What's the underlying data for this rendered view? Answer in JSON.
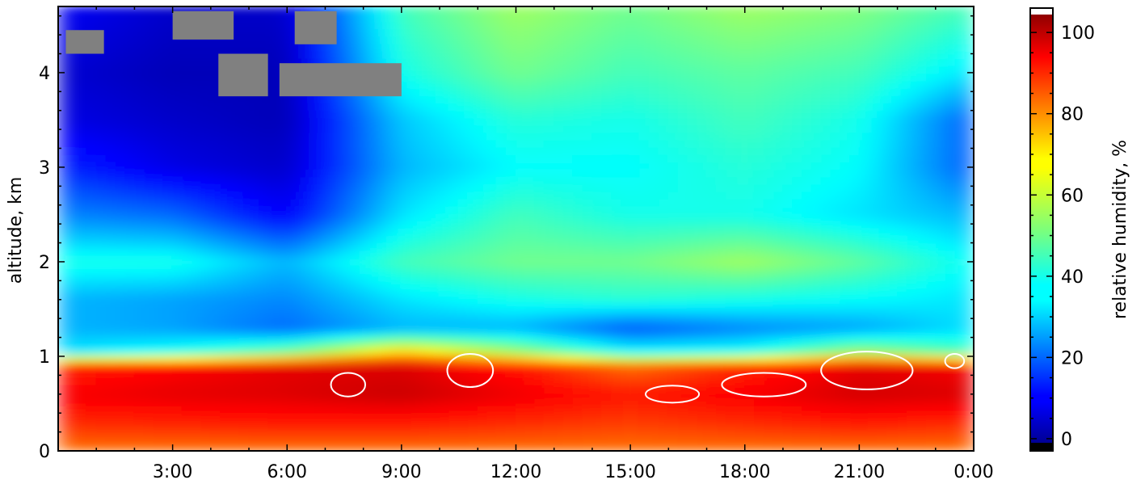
{
  "chart_data": {
    "type": "heatmap",
    "title": "",
    "xlabel": "",
    "ylabel": "altitude, km",
    "x_tick_labels": [
      "3:00",
      "6:00",
      "9:00",
      "12:00",
      "15:00",
      "18:00",
      "21:00",
      "0:00"
    ],
    "x_ticks_hours": [
      3,
      6,
      9,
      12,
      15,
      18,
      21,
      24
    ],
    "xlim_hours": [
      0,
      24
    ],
    "y_tick_labels": [
      "0",
      "1",
      "2",
      "3",
      "4"
    ],
    "y_ticks": [
      0,
      1,
      2,
      3,
      4
    ],
    "ylim": [
      0,
      4.7
    ],
    "colorbar": {
      "label": "relative humidity, %",
      "tick_labels": [
        "0",
        "20",
        "40",
        "60",
        "80",
        "100"
      ],
      "ticks": [
        0,
        20,
        40,
        60,
        80,
        100
      ],
      "range": [
        -3,
        106
      ],
      "colormap": "jet",
      "over_color": "#ffffff",
      "under_color": "#000000"
    },
    "no_data_color": "#808080",
    "contour_color": "#ffffff",
    "humidity_profile": {
      "altitude_km": [
        0.0,
        0.3,
        0.6,
        0.9,
        1.05,
        1.3,
        1.6,
        2.0,
        2.5,
        3.0,
        3.5,
        4.0,
        4.7
      ],
      "time_hours": [
        0,
        3,
        6,
        9,
        12,
        15,
        18,
        21,
        24
      ],
      "rh_percent": [
        [
          80,
          80,
          80,
          80,
          80,
          80,
          80,
          80,
          80
        ],
        [
          88,
          89,
          90,
          90,
          88,
          86,
          88,
          90,
          88
        ],
        [
          93,
          95,
          96,
          98,
          94,
          90,
          93,
          97,
          96
        ],
        [
          88,
          92,
          95,
          96,
          90,
          80,
          88,
          95,
          93
        ],
        [
          35,
          40,
          50,
          70,
          55,
          38,
          40,
          55,
          45
        ],
        [
          30,
          28,
          22,
          30,
          30,
          20,
          25,
          28,
          35
        ],
        [
          30,
          28,
          25,
          35,
          40,
          42,
          40,
          38,
          35
        ],
        [
          40,
          40,
          30,
          45,
          50,
          50,
          55,
          48,
          38
        ],
        [
          25,
          22,
          10,
          35,
          45,
          40,
          40,
          35,
          30
        ],
        [
          15,
          8,
          5,
          30,
          38,
          38,
          42,
          38,
          20
        ],
        [
          8,
          5,
          3,
          32,
          42,
          40,
          45,
          40,
          20
        ],
        [
          6,
          3,
          3,
          40,
          50,
          45,
          48,
          45,
          35
        ],
        [
          10,
          5,
          5,
          45,
          55,
          50,
          55,
          52,
          45
        ]
      ]
    },
    "no_data_patches": [
      {
        "t0": 0.2,
        "t1": 1.2,
        "z0": 4.2,
        "z1": 4.45
      },
      {
        "t0": 3.0,
        "t1": 4.6,
        "z0": 4.35,
        "z1": 4.65
      },
      {
        "t0": 4.2,
        "t1": 5.5,
        "z0": 3.75,
        "z1": 4.2
      },
      {
        "t0": 5.8,
        "t1": 9.0,
        "z0": 3.75,
        "z1": 4.1
      },
      {
        "t0": 6.2,
        "t1": 7.3,
        "z0": 4.3,
        "z1": 4.65
      }
    ],
    "cloud_contours": [
      {
        "t": 7.6,
        "z": 0.7,
        "w": 0.9,
        "h": 0.25
      },
      {
        "t": 10.8,
        "z": 0.85,
        "w": 1.2,
        "h": 0.35
      },
      {
        "t": 16.1,
        "z": 0.6,
        "w": 1.4,
        "h": 0.18
      },
      {
        "t": 18.5,
        "z": 0.7,
        "w": 2.2,
        "h": 0.25
      },
      {
        "t": 21.2,
        "z": 0.85,
        "w": 2.4,
        "h": 0.4
      },
      {
        "t": 23.5,
        "z": 0.95,
        "w": 0.5,
        "h": 0.15
      }
    ]
  }
}
